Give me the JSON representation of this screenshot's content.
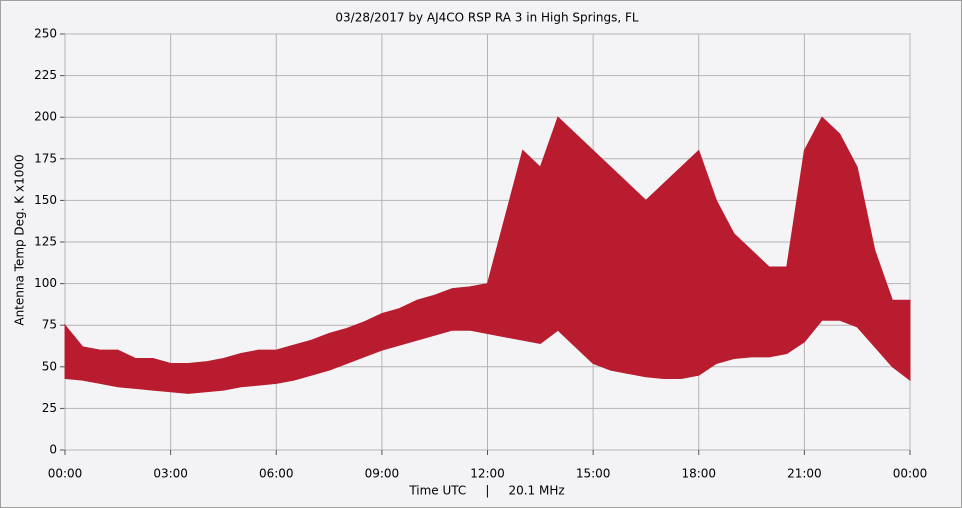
{
  "chart_data": {
    "type": "range_area",
    "title": "03/28/2017  by  AJ4CO RSP RA 3  in  High Springs, FL",
    "xlabel": "Time UTC     |     20.1 MHz",
    "ylabel": "Antenna Temp Deg. K x1000",
    "color": "#b81c2e",
    "grid": true,
    "xlim": [
      0,
      24
    ],
    "ylim": [
      0,
      250
    ],
    "xticks": [
      {
        "value": 0,
        "label": "00:00"
      },
      {
        "value": 3,
        "label": "03:00"
      },
      {
        "value": 6,
        "label": "06:00"
      },
      {
        "value": 9,
        "label": "09:00"
      },
      {
        "value": 12,
        "label": "12:00"
      },
      {
        "value": 15,
        "label": "15:00"
      },
      {
        "value": 18,
        "label": "18:00"
      },
      {
        "value": 21,
        "label": "21:00"
      },
      {
        "value": 24,
        "label": "00:00"
      }
    ],
    "yticks": [
      0,
      25,
      50,
      75,
      100,
      125,
      150,
      175,
      200,
      225,
      250
    ],
    "x": [
      0,
      0.5,
      1,
      1.5,
      2,
      2.5,
      3,
      3.5,
      4,
      4.5,
      5,
      5.5,
      6,
      6.5,
      7,
      7.5,
      8,
      8.5,
      9,
      9.5,
      10,
      10.5,
      11,
      11.5,
      12,
      12.5,
      13,
      13.5,
      14,
      14.5,
      15,
      15.5,
      16,
      16.5,
      17,
      17.5,
      18,
      18.5,
      19,
      19.5,
      20,
      20.5,
      21,
      21.5,
      22,
      22.5,
      23,
      23.5,
      24
    ],
    "low": [
      43,
      42,
      40,
      38,
      37,
      36,
      35,
      34,
      35,
      36,
      38,
      39,
      40,
      42,
      45,
      48,
      52,
      56,
      60,
      63,
      66,
      69,
      72,
      72,
      70,
      68,
      66,
      64,
      72,
      62,
      52,
      48,
      46,
      44,
      43,
      43,
      45,
      52,
      55,
      56,
      56,
      58,
      65,
      78,
      78,
      74,
      62,
      50,
      42
    ],
    "high": [
      75,
      62,
      60,
      60,
      55,
      55,
      52,
      52,
      53,
      55,
      58,
      60,
      60,
      63,
      66,
      70,
      73,
      77,
      82,
      85,
      90,
      93,
      97,
      98,
      100,
      140,
      180,
      170,
      200,
      190,
      180,
      170,
      160,
      150,
      160,
      170,
      180,
      150,
      130,
      120,
      110,
      110,
      180,
      200,
      190,
      170,
      120,
      90,
      90
    ]
  }
}
